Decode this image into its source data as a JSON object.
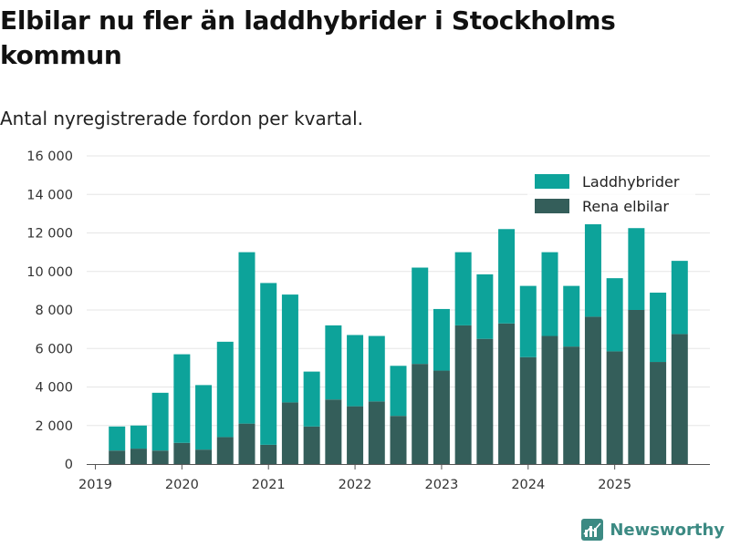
{
  "title": "Elbilar nu fler än laddhybrider i Stockholms kommun",
  "subtitle": "Antal nyregistrerade fordon per kvartal.",
  "brand": "Newsworthy",
  "colors": {
    "laddhybrider": "#0da39a",
    "elbilar": "#345e5a",
    "grid": "#e6e6e6",
    "axis": "#555555",
    "brand": "#3c8a83"
  },
  "chart_data": {
    "type": "bar",
    "stacked": true,
    "categories": [
      "2019 Q2",
      "2019 Q3",
      "2019 Q4",
      "2020 Q1",
      "2020 Q2",
      "2020 Q3",
      "2020 Q4",
      "2021 Q1",
      "2021 Q2",
      "2021 Q3",
      "2021 Q4",
      "2022 Q1",
      "2022 Q2",
      "2022 Q3",
      "2022 Q4",
      "2023 Q1",
      "2023 Q2",
      "2023 Q3",
      "2023 Q4",
      "2024 Q1",
      "2024 Q2",
      "2024 Q3",
      "2024 Q4",
      "2025 Q1",
      "2025 Q2",
      "2025 Q3",
      "2025 Q4"
    ],
    "x_numeric": [
      2019.25,
      2019.5,
      2019.75,
      2020.0,
      2020.25,
      2020.5,
      2020.75,
      2021.0,
      2021.25,
      2021.5,
      2021.75,
      2022.0,
      2022.25,
      2022.5,
      2022.75,
      2023.0,
      2023.25,
      2023.5,
      2023.75,
      2024.0,
      2024.25,
      2024.5,
      2024.75,
      2025.0,
      2025.25,
      2025.5,
      2025.75
    ],
    "series": [
      {
        "name": "Rena elbilar",
        "values": [
          700,
          800,
          700,
          1100,
          750,
          1400,
          2100,
          1000,
          3200,
          1950,
          3350,
          3000,
          3250,
          2500,
          5200,
          4850,
          7200,
          6500,
          7300,
          5550,
          6650,
          6100,
          7650,
          5850,
          8000,
          5300,
          6750
        ]
      },
      {
        "name": "Laddhybrider",
        "values": [
          1250,
          1200,
          3000,
          4600,
          3350,
          4950,
          8900,
          8400,
          5600,
          2850,
          3850,
          3700,
          3400,
          2600,
          5000,
          3200,
          3800,
          3350,
          4900,
          3700,
          4350,
          3150,
          4800,
          3800,
          4250,
          3600,
          3800
        ]
      }
    ],
    "xticks": [
      2019,
      2020,
      2021,
      2022,
      2023,
      2024,
      2025
    ],
    "yticks": [
      0,
      2000,
      4000,
      6000,
      8000,
      10000,
      12000,
      14000,
      16000
    ],
    "ytick_labels": [
      "0",
      "2 000",
      "4 000",
      "6 000",
      "8 000",
      "10 000",
      "12 000",
      "14 000",
      "16 000"
    ],
    "ylim": [
      0,
      16000
    ],
    "xlim": [
      2018.9,
      2026.1
    ],
    "legend": {
      "position": "top-right",
      "entries": [
        "Laddhybrider",
        "Rena elbilar"
      ]
    },
    "title": "Elbilar nu fler än laddhybrider i Stockholms kommun",
    "xlabel": "",
    "ylabel": ""
  }
}
